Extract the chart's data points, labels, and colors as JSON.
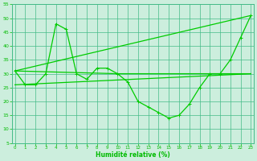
{
  "background_color": "#cceedd",
  "grid_color": "#44bb88",
  "line_color": "#00cc00",
  "xlim": [
    0,
    23
  ],
  "ylim": [
    5,
    55
  ],
  "xticks": [
    0,
    1,
    2,
    3,
    4,
    5,
    6,
    7,
    8,
    9,
    10,
    11,
    12,
    13,
    14,
    15,
    16,
    17,
    18,
    19,
    20,
    21,
    22,
    23
  ],
  "yticks": [
    5,
    10,
    15,
    20,
    25,
    30,
    35,
    40,
    45,
    50,
    55
  ],
  "xlabel": "Humidité relative (%)",
  "line1_x": [
    0,
    1,
    2,
    3,
    4,
    5,
    6,
    7,
    8,
    9,
    10,
    11,
    12,
    13,
    14,
    15,
    16,
    17,
    18,
    19,
    20,
    21,
    22,
    23
  ],
  "line1_y": [
    31,
    26,
    26,
    30,
    48,
    46,
    30,
    28,
    32,
    32,
    30,
    27,
    20,
    18,
    16,
    14,
    15,
    19,
    25,
    30,
    30,
    35,
    43,
    51
  ],
  "line2_x": [
    0,
    23
  ],
  "line2_y": [
    31,
    51
  ],
  "line3_x": [
    0,
    23
  ],
  "line3_y": [
    26,
    30
  ],
  "line4_x": [
    0,
    10,
    23
  ],
  "line4_y": [
    31,
    30,
    30
  ]
}
